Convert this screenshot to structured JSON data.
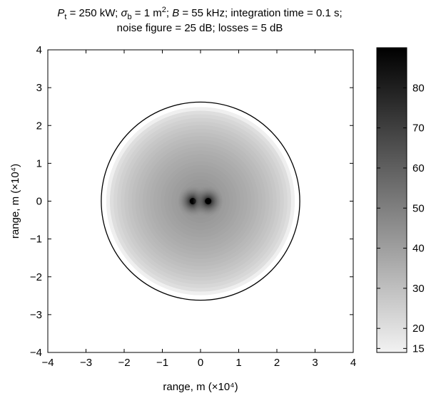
{
  "title": {
    "line1": {
      "pt_sym": "P",
      "pt_sub": "t",
      "pt_rest": " = 250 kW; ",
      "sigma_sym": "σ",
      "sigma_sub": "b",
      "sigma_rest": " = 1 m",
      "sigma_exp": "2",
      "sep": "; ",
      "b_sym": "B",
      "b_rest": " = 55 kHz; integration time = 0.1 s;"
    },
    "line2": "noise figure = 25 dB; losses = 5 dB"
  },
  "chart_data": {
    "type": "heatmap",
    "xlabel": "range, m (×10⁴)",
    "ylabel": "range, m (×10⁴)",
    "xlim": [
      -4,
      4
    ],
    "ylim": [
      -4,
      4
    ],
    "xticks": [
      "−4",
      "−3",
      "−2",
      "−1",
      "0",
      "1",
      "2",
      "3",
      "4"
    ],
    "yticks": [
      "−4",
      "−3",
      "−2",
      "−1",
      "0",
      "1",
      "2",
      "3",
      "4"
    ],
    "colormap": "gray (light = low, dark = high)",
    "colorbar": {
      "range": [
        14,
        90
      ],
      "ticks": [
        "15",
        "20",
        "30",
        "40",
        "50",
        "60",
        "70",
        "80"
      ]
    },
    "circle_radius": 2.6,
    "sources": [
      {
        "x": -0.2,
        "y": 0
      },
      {
        "x": 0.2,
        "y": 0
      }
    ],
    "peak_value": 90,
    "edge_value": 15,
    "colors": {
      "low": "#f2f2f2",
      "high": "#000000",
      "frame": "#000000"
    }
  }
}
